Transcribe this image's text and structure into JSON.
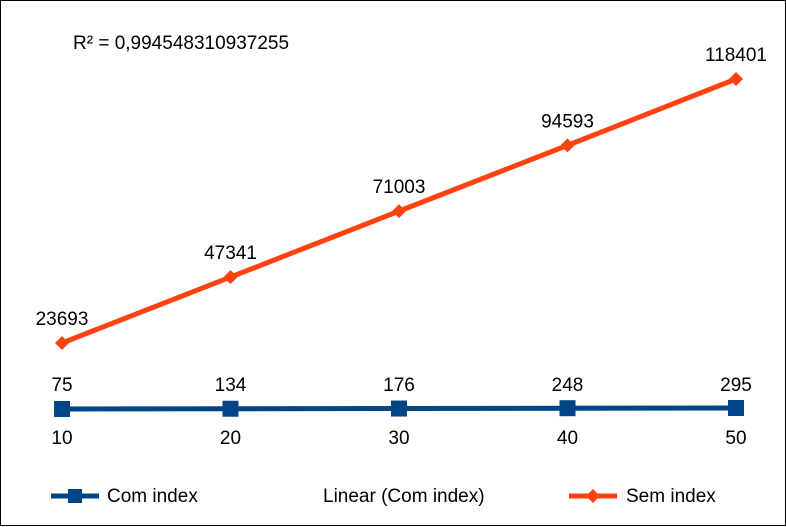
{
  "chart_data": {
    "type": "line",
    "categories": [
      "10",
      "20",
      "30",
      "40",
      "50"
    ],
    "series": [
      {
        "name": "Com index",
        "values": [
          75,
          134,
          176,
          248,
          295
        ],
        "color": "#004586",
        "marker": "square"
      },
      {
        "name": "Sem index",
        "values": [
          23693,
          47341,
          71003,
          94593,
          118401
        ],
        "color": "#ff420e",
        "marker": "diamond"
      }
    ],
    "trendline": {
      "name": "Linear (Com index)",
      "type": "linear"
    },
    "annotation": "R² = 0,994548310937255",
    "ylim": [
      0,
      118401
    ],
    "grid": false,
    "legend": "bottom"
  }
}
